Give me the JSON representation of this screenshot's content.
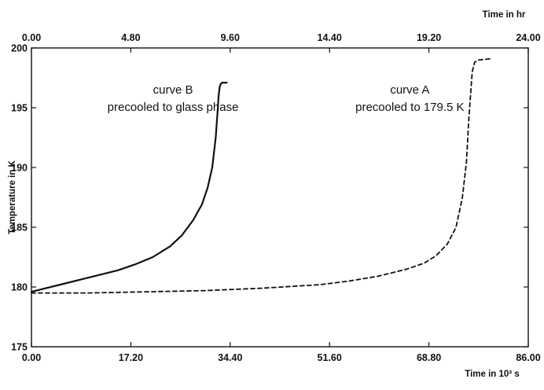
{
  "chart_data": {
    "type": "line",
    "xlabel": "Time in 10³ s",
    "x2label": "Time in hr",
    "ylabel": "Temperature in K",
    "xlim": [
      0,
      86
    ],
    "x2lim": [
      0,
      24
    ],
    "ylim": [
      175,
      200
    ],
    "xticks": [
      "0.00",
      "17.20",
      "34.40",
      "51.60",
      "68.80",
      "86.00"
    ],
    "x2ticks": [
      "0.00",
      "4.80",
      "9.60",
      "14.40",
      "19.20",
      "24.00"
    ],
    "yticks": [
      "175",
      "180",
      "185",
      "190",
      "195",
      "200"
    ],
    "grid": false,
    "legend": "none",
    "annotations": [
      {
        "lines": [
          "curve B",
          "precooled to glass phase"
        ],
        "x": 24.5,
        "y": 196.2
      },
      {
        "lines": [
          "curve A",
          "precooled to 179.5 K"
        ],
        "x": 65.5,
        "y": 196.2
      }
    ],
    "series": [
      {
        "label": "curve B",
        "style": "solid",
        "color": "#111111",
        "x": [
          0,
          5,
          10,
          15,
          18,
          21,
          24,
          26,
          28,
          29.5,
          30.5,
          31.3,
          31.9,
          32.2,
          32.4,
          32.6,
          32.8,
          33.0,
          33.8
        ],
        "y": [
          179.6,
          180.2,
          180.8,
          181.4,
          181.9,
          182.5,
          183.4,
          184.3,
          185.6,
          186.9,
          188.3,
          190.0,
          192.5,
          194.5,
          196.0,
          196.8,
          197.0,
          197.1,
          197.1
        ]
      },
      {
        "label": "curve A",
        "style": "dashed",
        "color": "#111111",
        "x": [
          0,
          10,
          20,
          30,
          40,
          50,
          55,
          60,
          65,
          68,
          70,
          72,
          73.5,
          74.6,
          75.3,
          75.7,
          76.0,
          76.3,
          76.7,
          77.5,
          79.5
        ],
        "y": [
          179.5,
          179.5,
          179.6,
          179.7,
          179.9,
          180.2,
          180.5,
          180.9,
          181.5,
          182.0,
          182.6,
          183.6,
          185.0,
          187.5,
          190.5,
          194.0,
          196.0,
          198.0,
          198.8,
          199.0,
          199.1
        ]
      }
    ]
  }
}
